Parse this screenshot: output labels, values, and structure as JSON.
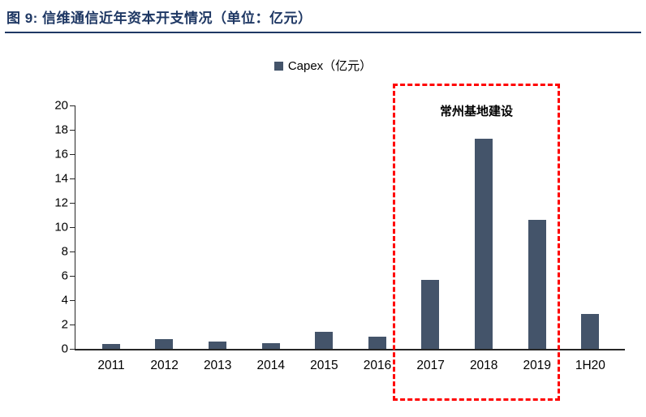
{
  "header": {
    "title": "图 9: 信维通信近年资本开支情况（单位：亿元）"
  },
  "legend": {
    "capex_label": "Capex（亿元）"
  },
  "annotation": {
    "label": "常州基地建设"
  },
  "colors": {
    "bar": "#44546A",
    "title": "#1F3864",
    "highlight_border": "#FF0000",
    "axis": "#262626"
  },
  "chart_data": {
    "type": "bar",
    "title": "图 9: 信维通信近年资本开支情况（单位：亿元）",
    "categories": [
      "2011",
      "2012",
      "2013",
      "2014",
      "2015",
      "2016",
      "2017",
      "2018",
      "2019",
      "1H20"
    ],
    "values": [
      0.4,
      0.8,
      0.6,
      0.5,
      1.4,
      1.0,
      5.7,
      17.3,
      10.6,
      2.9
    ],
    "xlabel": "",
    "ylabel": "",
    "ylim": [
      0,
      20
    ],
    "ytick_step": 2,
    "grid": false,
    "legend": [
      "Capex（亿元）"
    ],
    "legend_position": "top",
    "annotation": {
      "text": "常州基地建设",
      "highlight_categories": [
        "2017",
        "2018",
        "2019"
      ]
    }
  }
}
